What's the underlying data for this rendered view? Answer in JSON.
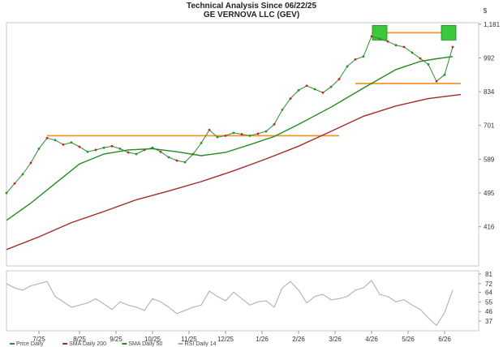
{
  "chart_data": {
    "type": "line",
    "title": "Technical Analysis Since 06/22/25",
    "subtitle": "GE VERNOVA LLC (GEV)",
    "price_axis": {
      "scale": "log",
      "ticks": [
        "1,181",
        "992",
        "834",
        "701",
        "589",
        "495",
        "416"
      ],
      "tick_values": [
        1181,
        992,
        834,
        701,
        589,
        495,
        416
      ],
      "range": [
        340,
        1190
      ]
    },
    "rsi_axis": {
      "ticks": [
        "81",
        "72",
        "64",
        "55",
        "46",
        "37"
      ],
      "tick_values": [
        81,
        72,
        64,
        55,
        46,
        37
      ],
      "range": [
        28,
        84
      ]
    },
    "x_tick_labels": [
      "7/25",
      "8/25",
      "9/25",
      "10/25",
      "11/25",
      "12/25",
      "1/26",
      "2/26",
      "3/26",
      "4/26",
      "5/26",
      "6/26"
    ],
    "x_tick_weeks": [
      4,
      9,
      13.5,
      18,
      22.5,
      27,
      31.5,
      36,
      40.5,
      45,
      49.5,
      54
    ],
    "legend": [
      "Price Daily",
      "SMA Daily 200",
      "SMA Daily 50",
      "RSI Daily 14"
    ],
    "series": [
      {
        "name": "Price Daily",
        "color": "#2e8b2e",
        "x_week": [
          0,
          1,
          2,
          3,
          4,
          5,
          6,
          7,
          8,
          9,
          10,
          11,
          12,
          13,
          14,
          15,
          16,
          17,
          18,
          19,
          20,
          21,
          22,
          23,
          24,
          25,
          26,
          27,
          28,
          29,
          30,
          31,
          32,
          33,
          34,
          35,
          36,
          37,
          38,
          39,
          40,
          41,
          42,
          43,
          44,
          45,
          46,
          47,
          48,
          49,
          50,
          51,
          52,
          53,
          54,
          55
        ],
        "values": [
          495,
          520,
          545,
          578,
          622,
          657,
          650,
          635,
          642,
          628,
          612,
          618,
          625,
          630,
          622,
          610,
          605,
          618,
          625,
          612,
          595,
          585,
          580,
          605,
          640,
          685,
          660,
          665,
          675,
          670,
          665,
          672,
          680,
          705,
          760,
          805,
          840,
          860,
          845,
          830,
          855,
          890,
          950,
          985,
          1000,
          1110,
          1095,
          1080,
          1060,
          1050,
          1020,
          990,
          960,
          880,
          910,
          1050
        ]
      },
      {
        "name": "SMA Daily 200",
        "color": "#a52a2a",
        "x_week": [
          0,
          4,
          8,
          12,
          16,
          20,
          24,
          28,
          32,
          36,
          40,
          44,
          48,
          52,
          56
        ],
        "values": [
          370,
          395,
          425,
          450,
          478,
          500,
          525,
          555,
          590,
          630,
          680,
          735,
          775,
          805,
          822
        ]
      },
      {
        "name": "SMA Daily 50",
        "color": "#228b22",
        "x_week": [
          0,
          3,
          6,
          9,
          12,
          15,
          18,
          21,
          24,
          27,
          30,
          33,
          36,
          40,
          44,
          48,
          51,
          53,
          55
        ],
        "values": [
          430,
          470,
          520,
          575,
          605,
          618,
          622,
          612,
          600,
          610,
          635,
          662,
          705,
          770,
          850,
          935,
          975,
          988,
          1000
        ]
      },
      {
        "name": "RSI Daily 14",
        "color": "#aaaaaa",
        "x_week": [
          0,
          1,
          2,
          3,
          4,
          5,
          6,
          7,
          8,
          9,
          10,
          11,
          12,
          13,
          14,
          15,
          16,
          17,
          18,
          19,
          20,
          21,
          22,
          23,
          24,
          25,
          26,
          27,
          28,
          29,
          30,
          31,
          32,
          33,
          34,
          35,
          36,
          37,
          38,
          39,
          40,
          41,
          42,
          43,
          44,
          45,
          46,
          47,
          48,
          49,
          50,
          51,
          52,
          53,
          54,
          55
        ],
        "values": [
          72,
          68,
          66,
          70,
          72,
          74,
          60,
          55,
          50,
          52,
          54,
          58,
          53,
          48,
          55,
          52,
          50,
          47,
          58,
          55,
          50,
          44,
          47,
          50,
          52,
          65,
          60,
          56,
          64,
          58,
          52,
          55,
          56,
          50,
          68,
          74,
          66,
          54,
          60,
          62,
          57,
          58,
          60,
          66,
          68,
          75,
          62,
          60,
          55,
          57,
          52,
          48,
          40,
          33,
          45,
          66
        ]
      }
    ],
    "support_resistance": [
      {
        "y": 665,
        "from_week": 5,
        "to_week": 41
      },
      {
        "y": 1130,
        "from_week": 45,
        "to_week": 55
      },
      {
        "y": 870,
        "from_week": 43,
        "to_week": 56
      }
    ],
    "highlight_markers_week": [
      46,
      54.5
    ]
  }
}
